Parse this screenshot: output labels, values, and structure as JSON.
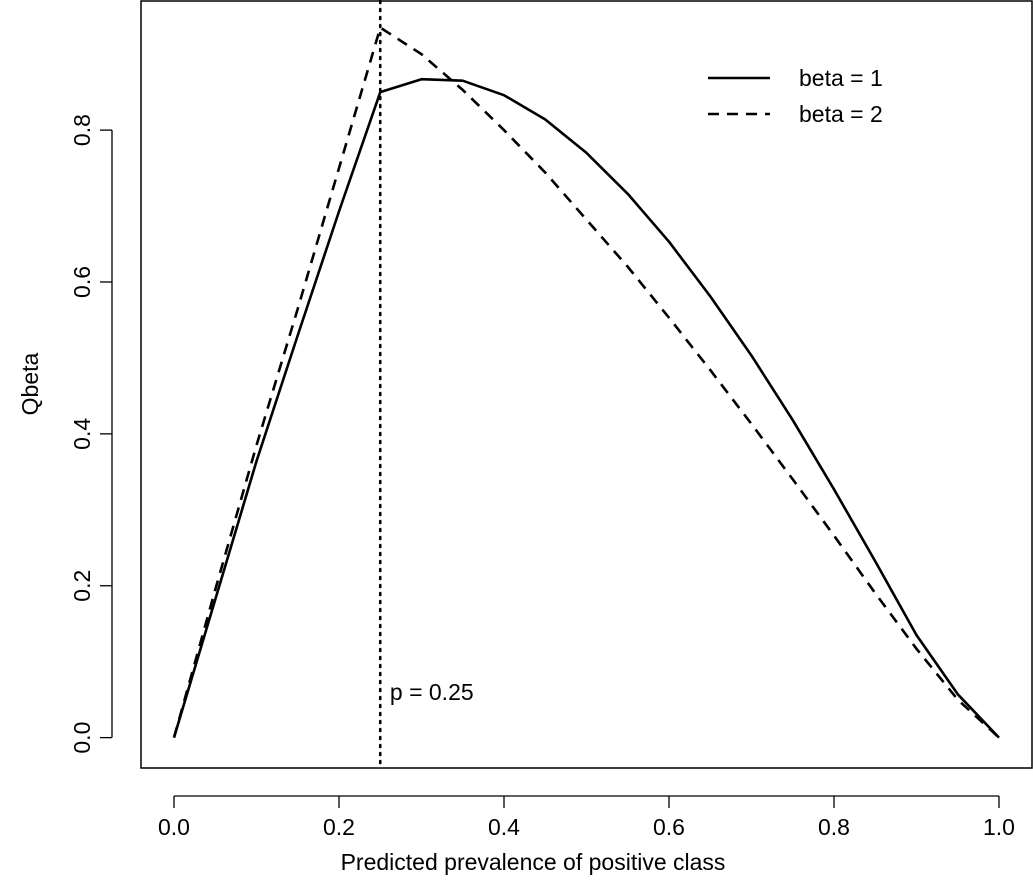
{
  "chart_data": {
    "type": "line",
    "title": "",
    "xlabel": "Predicted prevalence of positive class",
    "ylabel": "Qbeta",
    "xlim": [
      -0.04,
      1.04
    ],
    "ylim": [
      -0.04,
      0.97
    ],
    "xticks": [
      0.0,
      0.2,
      0.4,
      0.6,
      0.8,
      1.0
    ],
    "xtick_labels": [
      "0.0",
      "0.2",
      "0.4",
      "0.6",
      "0.8",
      "1.0"
    ],
    "yticks": [
      0.0,
      0.2,
      0.4,
      0.6,
      0.8
    ],
    "ytick_labels": [
      "0.0",
      "0.2",
      "0.4",
      "0.6",
      "0.8"
    ],
    "grid": false,
    "legend_position": "top-right",
    "series": [
      {
        "name": "beta = 1",
        "line_style": "solid",
        "x": [
          0.0,
          0.05,
          0.1,
          0.15,
          0.2,
          0.25,
          0.3,
          0.35,
          0.4,
          0.45,
          0.5,
          0.55,
          0.6,
          0.65,
          0.7,
          0.75,
          0.8,
          0.85,
          0.9,
          0.95,
          1.0
        ],
        "values": [
          0.0,
          0.182,
          0.364,
          0.53,
          0.693,
          0.85,
          0.867,
          0.865,
          0.846,
          0.814,
          0.77,
          0.716,
          0.653,
          0.581,
          0.503,
          0.418,
          0.327,
          0.232,
          0.135,
          0.057,
          0.0
        ]
      },
      {
        "name": "beta = 2",
        "line_style": "dashed",
        "x": [
          0.0,
          0.05,
          0.1,
          0.15,
          0.2,
          0.25,
          0.3,
          0.35,
          0.4,
          0.45,
          0.5,
          0.55,
          0.6,
          0.65,
          0.7,
          0.75,
          0.8,
          0.85,
          0.9,
          0.95,
          1.0
        ],
        "values": [
          0.0,
          0.195,
          0.385,
          0.565,
          0.75,
          0.935,
          0.9,
          0.853,
          0.8,
          0.744,
          0.682,
          0.62,
          0.553,
          0.484,
          0.413,
          0.34,
          0.266,
          0.19,
          0.117,
          0.05,
          0.0
        ]
      }
    ],
    "annotations": [
      {
        "type": "vline",
        "x": 0.25,
        "line_style": "dotted"
      },
      {
        "type": "text",
        "x": 0.252,
        "y": 0.06,
        "text": "p = 0.25"
      }
    ]
  }
}
